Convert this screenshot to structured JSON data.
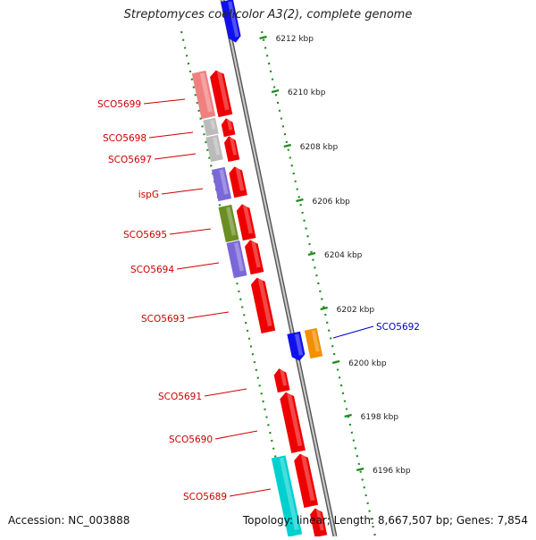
{
  "title": "Streptomyces coelicolor A3(2), complete genome",
  "footer": {
    "accession": "Accession: NC_003888",
    "summary": "Topology: linear; Length: 8,667,507 bp; Genes: 7,854"
  },
  "colors": {
    "red": "#ee0000",
    "blue": "#1010ee",
    "orange": "#f39000",
    "cyan": "#00d0d0",
    "pink": "#f08080",
    "grey": "#bbbbbb",
    "purple": "#7b68d8",
    "olive": "#6b8e23",
    "dots": "#228b22",
    "label_red": "#cc0000",
    "label_blue": "#0000cc"
  },
  "ticks": [
    "6212 kbp",
    "6210 kbp",
    "6208 kbp",
    "6206 kbp",
    "6204 kbp",
    "6202 kbp",
    "6200 kbp",
    "6198 kbp",
    "6196 kbp"
  ],
  "gene_labels": [
    {
      "name": "SCO5699",
      "color": "label_red"
    },
    {
      "name": "SCO5698",
      "color": "label_red"
    },
    {
      "name": "SCO5697",
      "color": "label_red"
    },
    {
      "name": "ispG",
      "color": "label_red"
    },
    {
      "name": "SCO5695",
      "color": "label_red"
    },
    {
      "name": "SCO5694",
      "color": "label_red"
    },
    {
      "name": "SCO5693",
      "color": "label_red"
    },
    {
      "name": "SCO5692",
      "color": "label_blue"
    },
    {
      "name": "SCO5691",
      "color": "label_red"
    },
    {
      "name": "SCO5690",
      "color": "label_red"
    },
    {
      "name": "SCO5689",
      "color": "label_red"
    }
  ]
}
